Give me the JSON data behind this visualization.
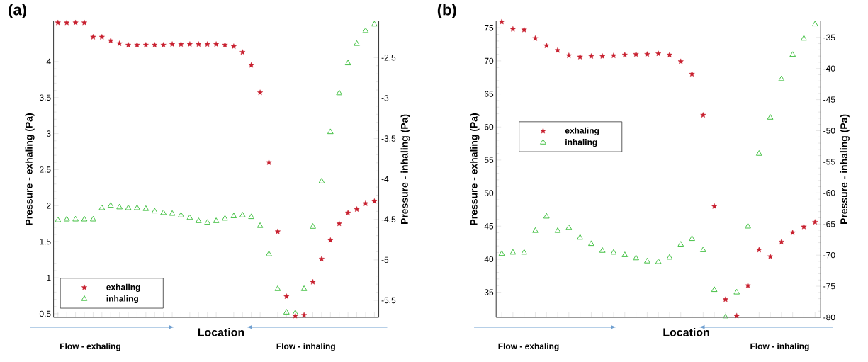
{
  "chart_data": [
    {
      "type": "scatter",
      "title": "(a)",
      "xlabel": "Location",
      "ylabel": "Pressure - exhaling (Pa)",
      "y2label": "Pressure - inhaling (Pa)",
      "categories": [
        null,
        null,
        null,
        null,
        null,
        null,
        null,
        null,
        null,
        null,
        null,
        null,
        null,
        null,
        null,
        null,
        null,
        null,
        null,
        null,
        null,
        null,
        null,
        null,
        null,
        null,
        null,
        null,
        null,
        null,
        null,
        null,
        null,
        null,
        null,
        null,
        null
      ],
      "series": [
        {
          "name": "exhaling",
          "color": "#c8202f",
          "marker": "star",
          "values": [
            4.54,
            4.54,
            4.54,
            4.54,
            4.34,
            4.34,
            4.29,
            4.25,
            4.23,
            4.23,
            4.23,
            4.23,
            4.23,
            4.24,
            4.24,
            4.24,
            4.24,
            4.24,
            4.24,
            4.23,
            4.21,
            4.13,
            3.95,
            3.57,
            2.6,
            1.64,
            0.74,
            0.47,
            0.48,
            0.94,
            1.26,
            1.52,
            1.75,
            1.9,
            1.95,
            2.03,
            2.06
          ]
        },
        {
          "name": "inhaling",
          "color": "#33bb33",
          "marker": "triangle",
          "axis": "y2",
          "values": [
            -4.51,
            -4.5,
            -4.5,
            -4.5,
            -4.5,
            -4.36,
            -4.33,
            -4.35,
            -4.36,
            -4.36,
            -4.37,
            -4.4,
            -4.42,
            -4.43,
            -4.45,
            -4.48,
            -4.52,
            -4.54,
            -4.52,
            -4.49,
            -4.46,
            -4.45,
            -4.47,
            -4.58,
            -4.93,
            -5.36,
            -5.65,
            -5.66,
            -5.36,
            -4.59,
            -4.03,
            -3.42,
            -2.94,
            -2.57,
            -2.33,
            -2.17,
            -2.09
          ]
        }
      ],
      "ylim": [
        0.45,
        4.56
      ],
      "yticks": [
        0.5,
        1,
        1.5,
        2,
        2.5,
        3,
        3.5,
        4
      ],
      "y2lim": [
        -5.71,
        -2.05
      ],
      "y2ticks": [
        -5.5,
        -5,
        -4.5,
        -4,
        -3.5,
        -3,
        -2.5
      ],
      "legend": "bottom left",
      "annotations": [
        "Flow - exhaling",
        "Flow - inhaling"
      ]
    },
    {
      "type": "scatter",
      "title": "(b)",
      "xlabel": "Location",
      "ylabel": "Pressure - exhaling (Pa)",
      "y2label": "Pressure - inhaling (Pa)",
      "categories": [
        null,
        null,
        null,
        null,
        null,
        null,
        null,
        null,
        null,
        null,
        null,
        null,
        null,
        null,
        null,
        null,
        null,
        null,
        null,
        null,
        null,
        null,
        null,
        null,
        null,
        null,
        null,
        null,
        null
      ],
      "series": [
        {
          "name": "exhaling",
          "color": "#c8202f",
          "marker": "star",
          "values": [
            75.9,
            74.8,
            74.7,
            73.4,
            72.3,
            71.6,
            70.8,
            70.6,
            70.7,
            70.7,
            70.8,
            70.9,
            71.0,
            71.0,
            71.1,
            70.9,
            69.9,
            68.0,
            61.8,
            48.0,
            33.9,
            31.4,
            36.0,
            41.4,
            40.4,
            42.6,
            44.0,
            44.9,
            45.6
          ]
        },
        {
          "name": "inhaling",
          "color": "#33bb33",
          "marker": "triangle",
          "axis": "y2",
          "values": [
            -69.8,
            -69.6,
            -69.6,
            -66.1,
            -63.8,
            -66.1,
            -65.6,
            -67.2,
            -68.2,
            -69.3,
            -69.6,
            -70.0,
            -70.5,
            -71.0,
            -71.1,
            -70.4,
            -68.3,
            -67.4,
            -69.2,
            -75.6,
            -80,
            -76.0,
            -65.4,
            -53.7,
            -47.9,
            -41.7,
            -37.8,
            -35.2,
            -32.9
          ]
        }
      ],
      "ylim": [
        31.2,
        76
      ],
      "yticks": [
        35,
        40,
        45,
        50,
        55,
        60,
        65,
        70,
        75
      ],
      "y2lim": [
        -80,
        -32.4
      ],
      "y2ticks": [
        -80,
        -75,
        -70,
        -65,
        -60,
        -55,
        -50,
        -45,
        -40,
        -35
      ],
      "legend": "left",
      "annotations": [
        "Flow - exhaling",
        "Flow - inhaling"
      ]
    }
  ]
}
